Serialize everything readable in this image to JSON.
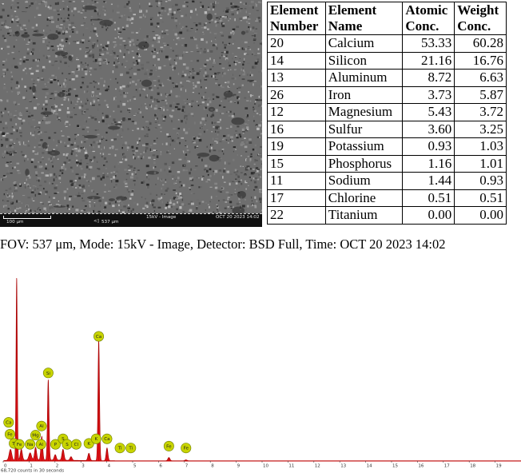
{
  "micrograph": {
    "scale_label": "100 μm",
    "fov_label": "537 μm",
    "mode_label": "15kV - Image",
    "time_label": "OCT 20 2023 14:02"
  },
  "table": {
    "headers": [
      [
        "Element",
        "Number"
      ],
      [
        "Element",
        "Name"
      ],
      [
        "Atomic",
        "Conc."
      ],
      [
        "Weight",
        "Conc."
      ]
    ],
    "rows": [
      [
        "20",
        "Calcium",
        "53.33",
        "60.28"
      ],
      [
        "14",
        "Silicon",
        "21.16",
        "16.76"
      ],
      [
        "13",
        "Aluminum",
        "8.72",
        "6.63"
      ],
      [
        "26",
        "Iron",
        "3.73",
        "5.87"
      ],
      [
        "12",
        "Magnesium",
        "5.43",
        "3.72"
      ],
      [
        "16",
        "Sulfur",
        "3.60",
        "3.25"
      ],
      [
        "19",
        "Potassium",
        "0.93",
        "1.03"
      ],
      [
        "15",
        "Phosphorus",
        "1.16",
        "1.01"
      ],
      [
        "11",
        "Sodium",
        "1.44",
        "0.93"
      ],
      [
        "17",
        "Chlorine",
        "0.51",
        "0.51"
      ],
      [
        "22",
        "Titanium",
        "0.00",
        "0.00"
      ]
    ]
  },
  "caption": "FOV: 537 μm, Mode: 15kV - Image, Detector: BSD Full, Time: OCT 20 2023 14:02",
  "chart_data": {
    "type": "area",
    "xlim": [
      0,
      20
    ],
    "x_ticks": [
      0,
      1,
      2,
      3,
      4,
      5,
      6,
      7,
      8,
      9,
      10,
      11,
      12,
      13,
      14,
      15,
      16,
      17,
      18,
      19
    ],
    "footer": "68,720 counts in 30 seconds",
    "color": "#e0141a",
    "label_color": "#c8d400",
    "peaks": [
      {
        "x": 0.28,
        "height": 0.06,
        "width": 0.05
      },
      {
        "x": 0.52,
        "height": 1.0,
        "width": 0.025
      },
      {
        "x": 0.7,
        "height": 0.06,
        "width": 0.04
      },
      {
        "x": 1.04,
        "height": 0.04,
        "width": 0.05
      },
      {
        "x": 1.25,
        "height": 0.07,
        "width": 0.04
      },
      {
        "x": 1.49,
        "height": 0.13,
        "width": 0.035
      },
      {
        "x": 1.74,
        "height": 0.44,
        "width": 0.03
      },
      {
        "x": 2.01,
        "height": 0.03,
        "width": 0.04
      },
      {
        "x": 2.31,
        "height": 0.06,
        "width": 0.04
      },
      {
        "x": 2.62,
        "height": 0.02,
        "width": 0.04
      },
      {
        "x": 3.31,
        "height": 0.04,
        "width": 0.04
      },
      {
        "x": 3.69,
        "height": 0.66,
        "width": 0.03
      },
      {
        "x": 4.01,
        "height": 0.07,
        "width": 0.035
      },
      {
        "x": 6.4,
        "height": 0.018,
        "width": 0.04
      },
      {
        "x": 7.06,
        "height": 0.005,
        "width": 0.04
      }
    ],
    "element_labels": [
      {
        "label": "Ca",
        "x": 0.21,
        "level": 0.185
      },
      {
        "label": "Fe",
        "x": 0.26,
        "level": 0.12
      },
      {
        "label": "Ti",
        "x": 0.42,
        "level": 0.07
      },
      {
        "label": "Fe",
        "x": 0.62,
        "level": 0.065
      },
      {
        "label": "Na",
        "x": 1.04,
        "level": 0.065
      },
      {
        "label": "Mg",
        "x": 1.25,
        "level": 0.115
      },
      {
        "label": "Al",
        "x": 1.48,
        "level": 0.165
      },
      {
        "label": "Al",
        "x": 1.46,
        "level": 0.065
      },
      {
        "label": "Si",
        "x": 1.74,
        "level": 0.455
      },
      {
        "label": "P",
        "x": 2.02,
        "level": 0.065
      },
      {
        "label": "S",
        "x": 2.31,
        "level": 0.095
      },
      {
        "label": "S",
        "x": 2.47,
        "level": 0.065
      },
      {
        "label": "Cl",
        "x": 2.82,
        "level": 0.065
      },
      {
        "label": "K",
        "x": 3.31,
        "level": 0.07
      },
      {
        "label": "K",
        "x": 3.59,
        "level": 0.095
      },
      {
        "label": "Ca",
        "x": 3.69,
        "level": 0.655
      },
      {
        "label": "Ca",
        "x": 4.01,
        "level": 0.095
      },
      {
        "label": "Ti",
        "x": 4.51,
        "level": 0.045
      },
      {
        "label": "Ti",
        "x": 4.93,
        "level": 0.045
      },
      {
        "label": "Fe",
        "x": 6.4,
        "level": 0.055
      },
      {
        "label": "Fe",
        "x": 7.06,
        "level": 0.045
      }
    ]
  }
}
